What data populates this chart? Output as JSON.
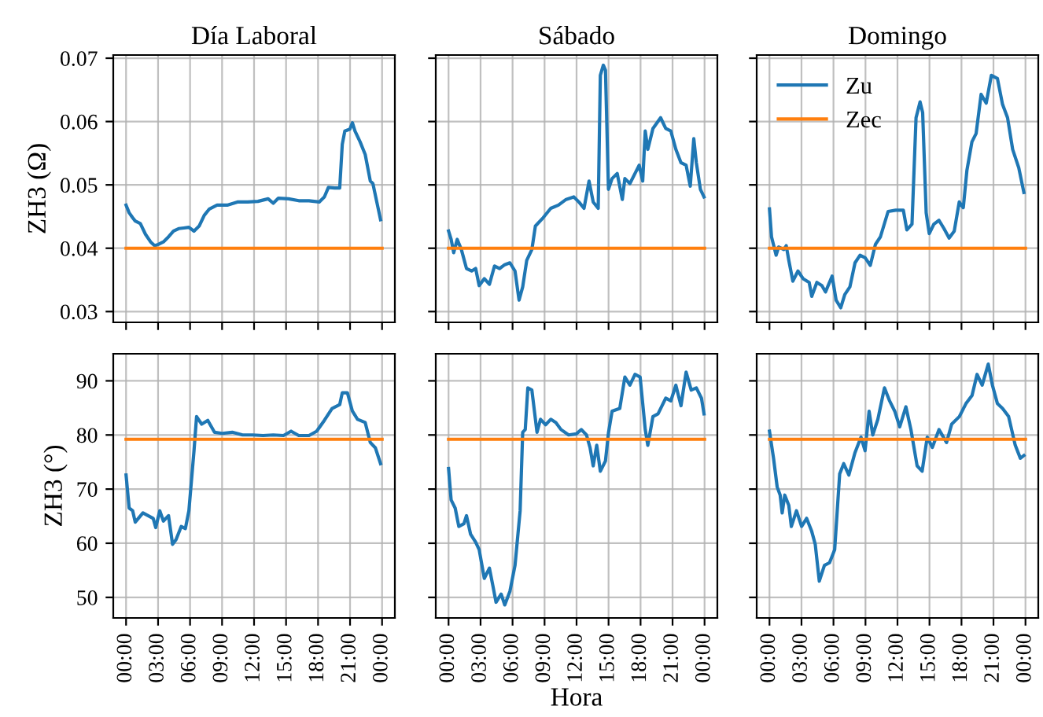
{
  "chart_data": [
    {
      "type": "line",
      "title": "Día Laboral",
      "ylabel": "ZH3 (Ω)",
      "tick_labels": "y",
      "grid": true,
      "xlim": [
        -1.2,
        25.2
      ],
      "xticks": [
        {
          "value": 0,
          "label": null
        },
        {
          "value": 3,
          "label": null
        },
        {
          "value": 6,
          "label": null
        },
        {
          "value": 9,
          "label": null
        },
        {
          "value": 12,
          "label": null
        },
        {
          "value": 15,
          "label": null
        },
        {
          "value": 18,
          "label": null
        },
        {
          "value": 21,
          "label": null
        },
        {
          "value": 24,
          "label": null
        }
      ],
      "ylim": [
        0.0283,
        0.0705
      ],
      "yticks": [
        0.03,
        0.04,
        0.05,
        0.06,
        0.07
      ],
      "series": [
        {
          "color": "#1f77b4",
          "x": [
            0,
            0.29,
            0.62,
            0.86,
            1.34,
            1.82,
            2.3,
            2.68,
            3.02,
            3.5,
            3.98,
            4.45,
            4.93,
            5.41,
            5.89,
            6.37,
            6.85,
            7.33,
            7.81,
            8.53,
            9.48,
            10.44,
            11.4,
            12.36,
            13.32,
            13.8,
            14.28,
            15.23,
            16.19,
            17.15,
            18.11,
            18.59,
            18.97,
            19.55,
            20.03,
            20.27,
            20.51,
            20.98,
            21.22,
            21.46,
            21.94,
            22.42,
            22.9,
            23.14,
            23.62,
            23.86
          ],
          "values": [
            0.0468,
            0.0456,
            0.0448,
            0.0443,
            0.0439,
            0.0422,
            0.041,
            0.0404,
            0.0406,
            0.041,
            0.0418,
            0.0427,
            0.0431,
            0.0432,
            0.0433,
            0.0427,
            0.0435,
            0.0452,
            0.0462,
            0.0468,
            0.0468,
            0.0473,
            0.0473,
            0.0474,
            0.0478,
            0.0471,
            0.0479,
            0.0478,
            0.0475,
            0.0475,
            0.0473,
            0.0481,
            0.0496,
            0.0495,
            0.0495,
            0.0564,
            0.0585,
            0.0588,
            0.0598,
            0.0585,
            0.0568,
            0.0548,
            0.0506,
            0.0502,
            0.0464,
            0.0445
          ]
        },
        {
          "color": "#ff7f0e",
          "x": [
            0,
            24
          ],
          "values": [
            0.04,
            0.04
          ]
        }
      ]
    },
    {
      "type": "line",
      "title": "Sábado",
      "tick_labels": false,
      "grid": true,
      "xlim": [
        -1.2,
        25.2
      ],
      "xticks": [
        {
          "value": 0,
          "label": null
        },
        {
          "value": 3,
          "label": null
        },
        {
          "value": 6,
          "label": null
        },
        {
          "value": 9,
          "label": null
        },
        {
          "value": 12,
          "label": null
        },
        {
          "value": 15,
          "label": null
        },
        {
          "value": 18,
          "label": null
        },
        {
          "value": 21,
          "label": null
        },
        {
          "value": 24,
          "label": null
        }
      ],
      "ylim": [
        0.0283,
        0.0705
      ],
      "yticks": [
        0.03,
        0.04,
        0.05,
        0.06,
        0.07
      ],
      "series": [
        {
          "color": "#1f77b4",
          "x": [
            0,
            0.24,
            0.48,
            0.81,
            1.2,
            1.68,
            2.16,
            2.54,
            2.87,
            3.35,
            3.83,
            4.31,
            4.79,
            5.27,
            5.75,
            6.23,
            6.61,
            6.95,
            7.33,
            7.81,
            8.14,
            8.86,
            9.58,
            10.3,
            11.02,
            11.74,
            12.22,
            12.7,
            13.17,
            13.56,
            14.03,
            14.23,
            14.51,
            14.71,
            14.99,
            15.33,
            15.81,
            16.29,
            16.53,
            17.0,
            17.48,
            17.87,
            18.2,
            18.44,
            18.68,
            19.16,
            19.88,
            20.36,
            20.84,
            21.31,
            21.79,
            22.27,
            22.66,
            22.99,
            23.23,
            23.61,
            23.95
          ],
          "values": [
            0.0427,
            0.0414,
            0.0393,
            0.0414,
            0.0398,
            0.0368,
            0.0364,
            0.0368,
            0.0341,
            0.0352,
            0.0343,
            0.0372,
            0.0368,
            0.0374,
            0.0377,
            0.0364,
            0.0318,
            0.0339,
            0.0381,
            0.0398,
            0.0435,
            0.0448,
            0.0463,
            0.0468,
            0.0477,
            0.0481,
            0.0473,
            0.0463,
            0.0506,
            0.0473,
            0.0463,
            0.0673,
            0.0689,
            0.0681,
            0.0493,
            0.051,
            0.0518,
            0.0477,
            0.051,
            0.0502,
            0.0518,
            0.0531,
            0.0506,
            0.0585,
            0.0556,
            0.0589,
            0.0606,
            0.0589,
            0.0585,
            0.0556,
            0.0535,
            0.0531,
            0.0498,
            0.0573,
            0.0535,
            0.0493,
            0.0481
          ]
        },
        {
          "color": "#ff7f0e",
          "x": [
            0,
            24
          ],
          "values": [
            0.04,
            0.04
          ]
        }
      ]
    },
    {
      "type": "line",
      "title": "Domingo",
      "tick_labels": false,
      "grid": true,
      "legend": "top left",
      "xlim": [
        -1.2,
        25.2
      ],
      "xticks": [
        {
          "value": 0,
          "label": null
        },
        {
          "value": 3,
          "label": null
        },
        {
          "value": 6,
          "label": null
        },
        {
          "value": 9,
          "label": null
        },
        {
          "value": 12,
          "label": null
        },
        {
          "value": 15,
          "label": null
        },
        {
          "value": 18,
          "label": null
        },
        {
          "value": 21,
          "label": null
        },
        {
          "value": 24,
          "label": null
        }
      ],
      "ylim": [
        0.0283,
        0.0705
      ],
      "yticks": [
        0.03,
        0.04,
        0.05,
        0.06,
        0.07
      ],
      "series": [
        {
          "name": "Zu",
          "color": "#1f77b4",
          "x": [
            0,
            0.19,
            0.62,
            0.86,
            1.34,
            1.57,
            1.81,
            2.19,
            2.67,
            3.15,
            3.72,
            3.96,
            4.44,
            4.91,
            5.25,
            5.87,
            6.25,
            6.68,
            7.06,
            7.54,
            8.02,
            8.49,
            8.97,
            9.45,
            9.93,
            10.4,
            11.12,
            11.83,
            12.55,
            12.88,
            13.36,
            13.74,
            14.12,
            14.36,
            14.69,
            14.98,
            15.41,
            15.89,
            16.36,
            16.84,
            17.32,
            17.79,
            18.17,
            18.51,
            18.98,
            19.37,
            19.84,
            20.32,
            20.8,
            21.37,
            21.85,
            22.32,
            22.8,
            23.37,
            23.85
          ],
          "values": [
            0.0462,
            0.0418,
            0.0389,
            0.0402,
            0.0398,
            0.0404,
            0.0381,
            0.0348,
            0.0364,
            0.0352,
            0.0346,
            0.0324,
            0.0346,
            0.0341,
            0.0331,
            0.0356,
            0.0318,
            0.0306,
            0.0327,
            0.0339,
            0.0377,
            0.0389,
            0.0385,
            0.0373,
            0.0406,
            0.0418,
            0.0458,
            0.046,
            0.046,
            0.0429,
            0.0438,
            0.0606,
            0.0631,
            0.0614,
            0.0456,
            0.0423,
            0.0438,
            0.0444,
            0.0431,
            0.0416,
            0.0427,
            0.0473,
            0.0464,
            0.0523,
            0.0568,
            0.0581,
            0.0643,
            0.0629,
            0.0673,
            0.0668,
            0.0627,
            0.0606,
            0.0556,
            0.0527,
            0.0488
          ]
        },
        {
          "name": "Zec",
          "color": "#ff7f0e",
          "x": [
            0,
            24
          ],
          "values": [
            0.04,
            0.04
          ]
        }
      ]
    },
    {
      "type": "line",
      "ylabel": "ZH3 (°)",
      "grid": true,
      "xlim": [
        -1.2,
        25.2
      ],
      "xticks": [
        {
          "value": 0,
          "label": "00:00"
        },
        {
          "value": 3,
          "label": "03:00"
        },
        {
          "value": 6,
          "label": "06:00"
        },
        {
          "value": 9,
          "label": "09:00"
        },
        {
          "value": 12,
          "label": "12:00"
        },
        {
          "value": 15,
          "label": "15:00"
        },
        {
          "value": 18,
          "label": "18:00"
        },
        {
          "value": 21,
          "label": "21:00"
        },
        {
          "value": 24,
          "label": "00:00"
        }
      ],
      "ylim": [
        46.2,
        95
      ],
      "yticks": [
        50,
        60,
        70,
        80,
        90
      ],
      "series": [
        {
          "color": "#1f77b4",
          "x": [
            0,
            0.29,
            0.62,
            0.86,
            1.58,
            2.06,
            2.54,
            2.78,
            3.16,
            3.5,
            3.98,
            4.36,
            4.69,
            5.17,
            5.56,
            5.89,
            6.37,
            6.61,
            7.09,
            7.66,
            8.29,
            9.01,
            9.96,
            10.92,
            11.88,
            12.84,
            13.8,
            14.76,
            15.47,
            16.19,
            17.15,
            17.87,
            18.59,
            19.31,
            20.03,
            20.27,
            20.75,
            21.22,
            21.7,
            22.42,
            22.9,
            23.38,
            23.86
          ],
          "values": [
            72.6,
            66.5,
            66.0,
            63.9,
            65.6,
            65.1,
            64.6,
            62.9,
            66.0,
            64.1,
            65.1,
            59.8,
            60.7,
            63.1,
            62.7,
            66.0,
            77.1,
            83.4,
            82.0,
            82.7,
            80.5,
            80.3,
            80.5,
            80.0,
            80.0,
            79.9,
            80.0,
            79.9,
            80.7,
            79.9,
            79.9,
            80.7,
            82.7,
            84.9,
            85.6,
            87.8,
            87.8,
            84.4,
            82.9,
            82.3,
            78.6,
            77.6,
            74.7
          ]
        },
        {
          "color": "#ff7f0e",
          "x": [
            0,
            24
          ],
          "values": [
            79.2,
            79.2
          ]
        }
      ]
    },
    {
      "type": "line",
      "xlabel": "Hora",
      "tick_labels": "x",
      "grid": true,
      "xlim": [
        -1.2,
        25.2
      ],
      "xticks": [
        {
          "value": 0,
          "label": "00:00"
        },
        {
          "value": 3,
          "label": "03:00"
        },
        {
          "value": 6,
          "label": "06:00"
        },
        {
          "value": 9,
          "label": "09:00"
        },
        {
          "value": 12,
          "label": "12:00"
        },
        {
          "value": 15,
          "label": "15:00"
        },
        {
          "value": 18,
          "label": "18:00"
        },
        {
          "value": 21,
          "label": "21:00"
        },
        {
          "value": 24,
          "label": "00:00"
        }
      ],
      "ylim": [
        46.2,
        95
      ],
      "yticks": [
        50,
        60,
        70,
        80,
        90
      ],
      "series": [
        {
          "color": "#1f77b4",
          "x": [
            0,
            0.24,
            0.62,
            0.96,
            1.44,
            1.68,
            2.06,
            2.54,
            2.87,
            3.35,
            3.83,
            4.17,
            4.45,
            4.93,
            5.27,
            5.75,
            6.23,
            6.71,
            6.95,
            7.19,
            7.43,
            7.81,
            8.29,
            8.62,
            9.1,
            9.58,
            10.06,
            10.54,
            11.26,
            11.98,
            12.45,
            12.93,
            13.27,
            13.56,
            13.89,
            14.23,
            14.71,
            15.0,
            15.33,
            16.05,
            16.53,
            17.0,
            17.48,
            17.96,
            18.44,
            18.68,
            19.16,
            19.64,
            20.36,
            20.84,
            21.31,
            21.79,
            22.27,
            22.75,
            23.23,
            23.71,
            23.95
          ],
          "values": [
            73.8,
            68.0,
            66.5,
            63.1,
            63.6,
            65.1,
            61.7,
            60.2,
            58.8,
            53.5,
            55.4,
            52.0,
            49.1,
            50.6,
            48.6,
            51.1,
            55.9,
            66.0,
            80.5,
            81.0,
            88.7,
            88.3,
            80.5,
            82.9,
            81.9,
            82.9,
            82.3,
            81.0,
            80.0,
            80.2,
            81.0,
            80.0,
            77.6,
            74.3,
            78.1,
            73.3,
            75.2,
            80.5,
            84.4,
            84.9,
            90.7,
            89.2,
            91.2,
            90.7,
            81.0,
            78.1,
            83.4,
            83.9,
            86.8,
            86.3,
            89.2,
            85.4,
            91.6,
            88.3,
            88.7,
            86.8,
            83.9
          ]
        },
        {
          "color": "#ff7f0e",
          "x": [
            0,
            24
          ],
          "values": [
            79.2,
            79.2
          ]
        }
      ]
    },
    {
      "type": "line",
      "tick_labels": "x",
      "grid": true,
      "xlim": [
        -1.2,
        25.2
      ],
      "xticks": [
        {
          "value": 0,
          "label": "00:00"
        },
        {
          "value": 3,
          "label": "03:00"
        },
        {
          "value": 6,
          "label": "06:00"
        },
        {
          "value": 9,
          "label": "09:00"
        },
        {
          "value": 12,
          "label": "12:00"
        },
        {
          "value": 15,
          "label": "15:00"
        },
        {
          "value": 18,
          "label": "18:00"
        },
        {
          "value": 21,
          "label": "21:00"
        },
        {
          "value": 24,
          "label": "00:00"
        }
      ],
      "ylim": [
        46.2,
        95
      ],
      "yticks": [
        50,
        60,
        70,
        80,
        90
      ],
      "series": [
        {
          "color": "#1f77b4",
          "x": [
            0,
            0.38,
            0.72,
            1.0,
            1.19,
            1.43,
            1.81,
            2.05,
            2.53,
            3.01,
            3.48,
            3.96,
            4.29,
            4.67,
            5.15,
            5.63,
            6.11,
            6.58,
            6.96,
            7.44,
            8.01,
            8.58,
            8.96,
            9.34,
            9.68,
            10.16,
            10.78,
            11.26,
            11.74,
            12.21,
            12.79,
            13.26,
            13.84,
            14.31,
            14.79,
            15.27,
            15.89,
            16.6,
            17.08,
            17.8,
            18.42,
            18.99,
            19.46,
            19.94,
            20.51,
            20.9,
            21.37,
            21.85,
            22.42,
            23.04,
            23.52,
            23.85
          ],
          "values": [
            80.7,
            75.7,
            70.4,
            68.9,
            65.6,
            68.9,
            67.0,
            63.1,
            66.0,
            63.1,
            64.6,
            62.2,
            59.8,
            53.0,
            55.9,
            56.4,
            58.8,
            72.8,
            74.7,
            72.6,
            76.7,
            79.6,
            77.1,
            84.4,
            80.0,
            82.9,
            88.7,
            86.3,
            84.4,
            81.5,
            85.2,
            81.0,
            74.3,
            73.3,
            79.6,
            77.7,
            81.0,
            78.6,
            82.0,
            83.4,
            85.8,
            87.3,
            91.2,
            89.2,
            93.1,
            89.2,
            85.8,
            84.9,
            83.4,
            78.1,
            75.7,
            76.2
          ]
        },
        {
          "color": "#ff7f0e",
          "x": [
            0,
            24
          ],
          "values": [
            79.2,
            79.2
          ]
        }
      ]
    }
  ]
}
